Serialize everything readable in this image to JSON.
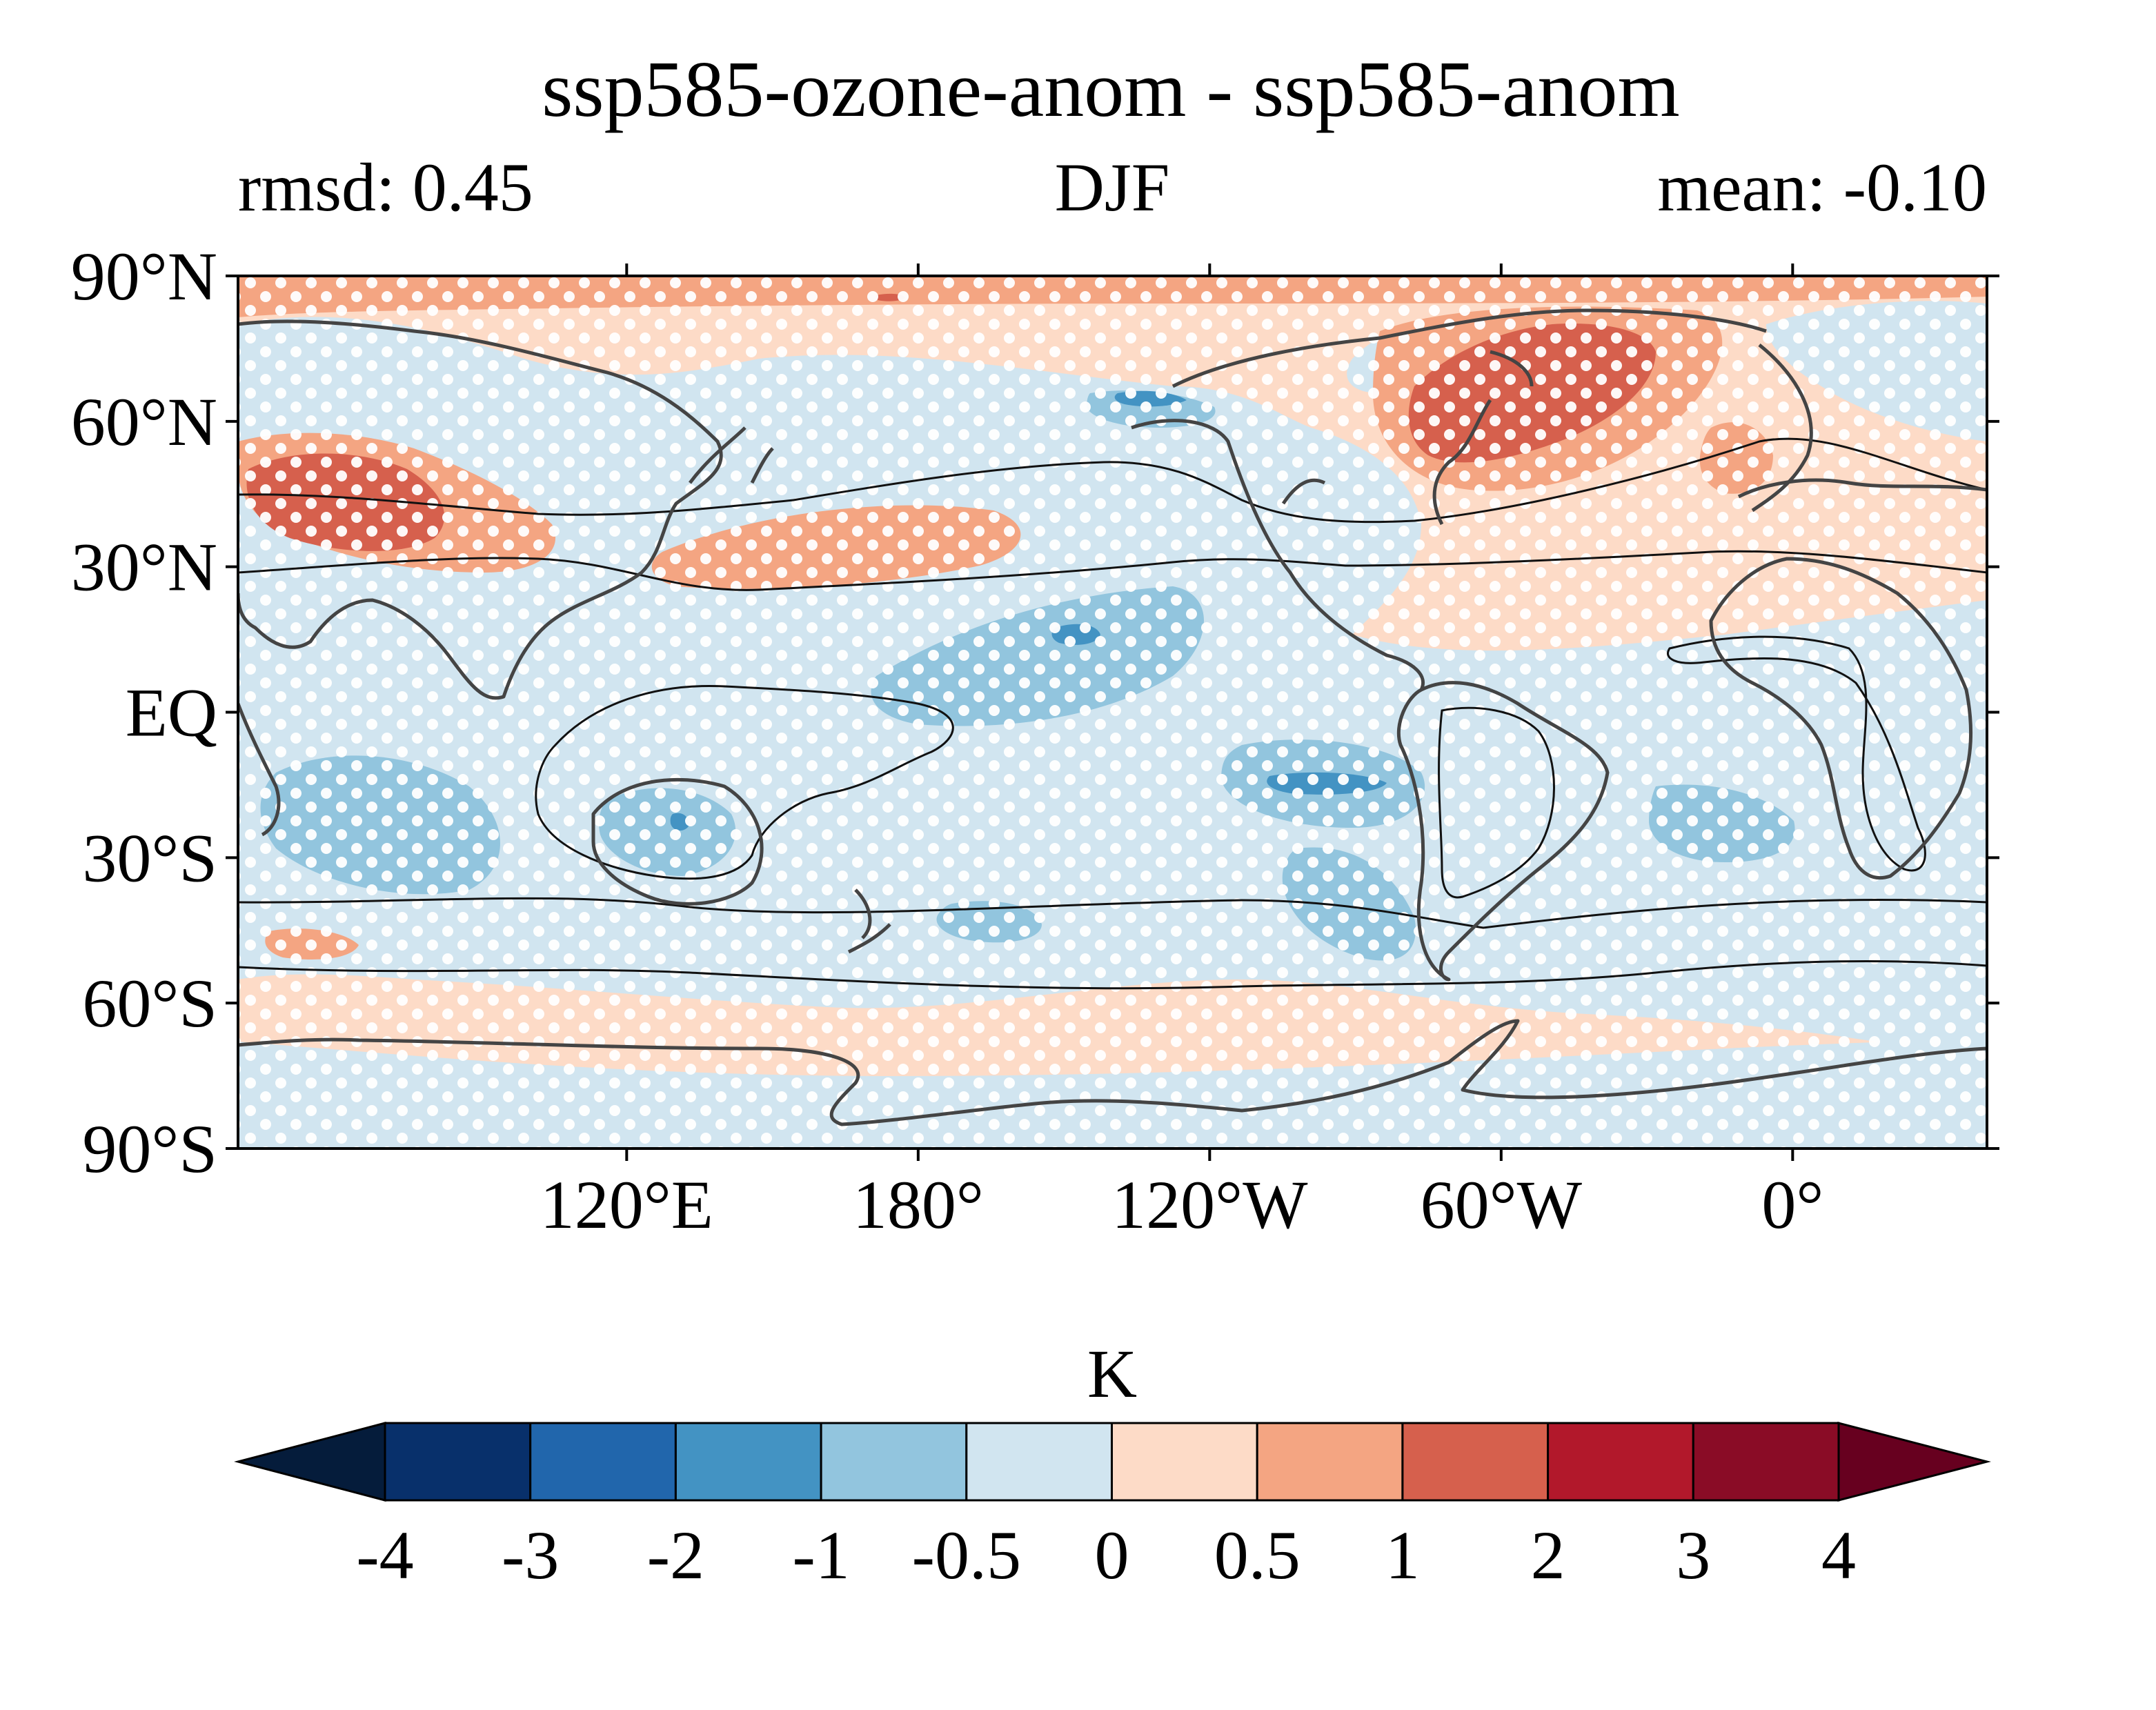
{
  "header": {
    "title": "ssp585-ozone-anom - ssp585-anom",
    "left_label": "rmsd: 0.45",
    "center_label": "DJF",
    "right_label": "mean: -0.10"
  },
  "map": {
    "lat_ticks": [
      "90°N",
      "60°N",
      "30°N",
      "EQ",
      "30°S",
      "60°S",
      "90°S"
    ],
    "lon_ticks": [
      "120°E",
      "180°",
      "120°W",
      "60°W",
      "0°"
    ],
    "lon_range": [
      40,
      400
    ],
    "lat_range": [
      -90,
      90
    ],
    "stippling": "white dots"
  },
  "colorbar": {
    "unit_label": "K",
    "levels": [
      "-4",
      "-3",
      "-2",
      "-1",
      "-0.5",
      "0",
      "0.5",
      "1",
      "2",
      "3",
      "4"
    ],
    "colors": [
      "#08306b",
      "#2166ac",
      "#4393c3",
      "#92c5de",
      "#d1e5f0",
      "#fddbc7",
      "#f4a582",
      "#d6604d",
      "#b2182b",
      "#8a0c26"
    ],
    "extend_low_color": "#051c3b",
    "extend_high_color": "#67001f"
  }
}
